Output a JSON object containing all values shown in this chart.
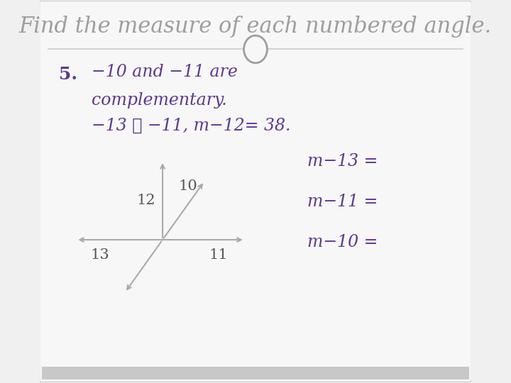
{
  "title": "Find the measure of each numbered angle.",
  "title_color": "#9e9e9e",
  "title_fontsize": 22,
  "bg_color": "#f0f0f0",
  "card_color": "#f7f7f7",
  "border_color": "#cccccc",
  "text_color": "#5b3a8a",
  "problem_number": "5.",
  "line1": "−10 and −11 are",
  "line2": "complementary.",
  "line3": "−13 ≅ −11, m−12= 38.",
  "right_labels": [
    "m−13 =",
    "m−11 =",
    "m−10 ="
  ],
  "angle_labels": [
    "12",
    "10",
    "13",
    "11"
  ],
  "separator_circle_color": "#9e9e9e",
  "bottom_bar_color": "#aaaaaa",
  "ray_color": "#aaaaaa",
  "label_color": "#555555"
}
